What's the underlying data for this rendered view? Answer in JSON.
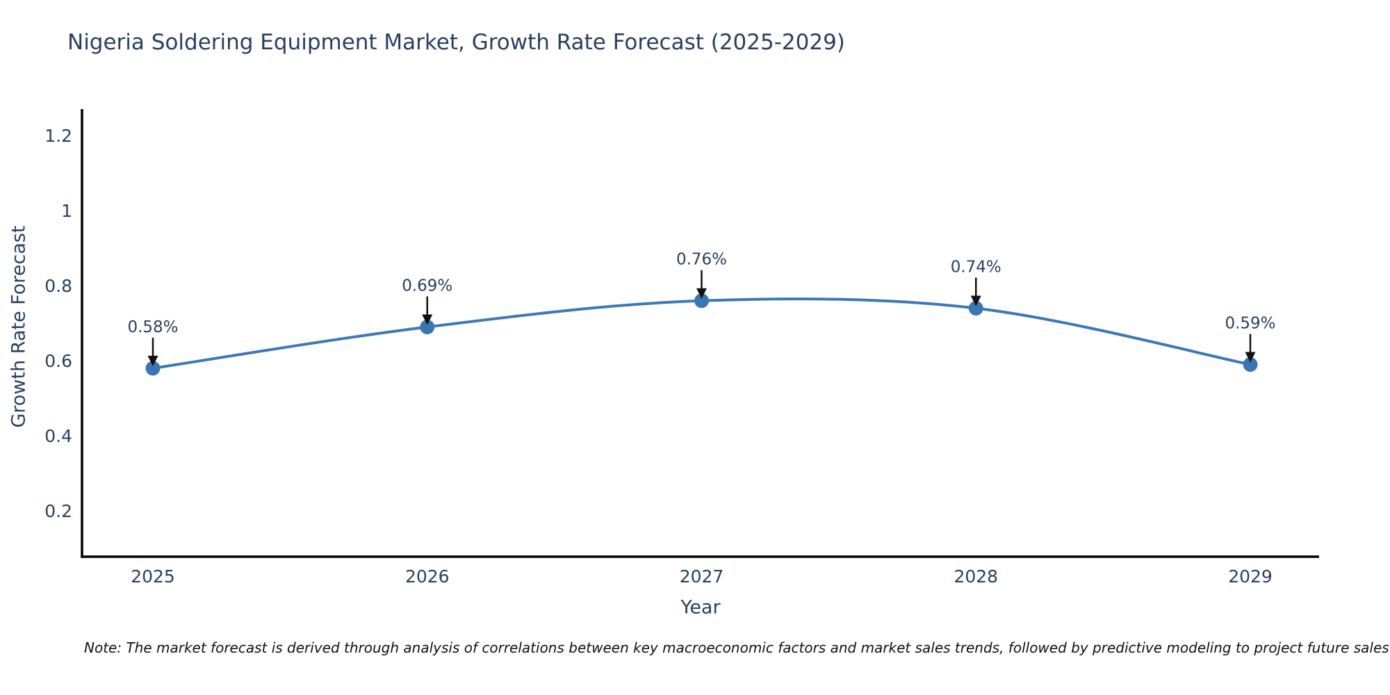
{
  "title": "Nigeria Soldering Equipment Market, Growth Rate Forecast (2025-2029)",
  "note": "Note: The market forecast is derived through analysis of correlations between key macroeconomic factors and market sales trends, followed by predictive modeling to project future sales",
  "chart_data": {
    "type": "line",
    "line_shape": "spline",
    "categories": [
      "2025",
      "2026",
      "2027",
      "2028",
      "2029"
    ],
    "series": [
      {
        "name": "Growth Rate Forecast",
        "values": [
          0.58,
          0.69,
          0.76,
          0.74,
          0.59
        ]
      }
    ],
    "point_labels": [
      "0.58%",
      "0.69%",
      "0.76%",
      "0.74%",
      "0.59%"
    ],
    "title": "Nigeria Soldering Equipment Market, Growth Rate Forecast (2025-2029)",
    "xlabel": "Year",
    "ylabel": "Growth Rate Forecast",
    "yticks": [
      0.2,
      0.4,
      0.6,
      0.8,
      1,
      1.2
    ],
    "ytick_labels": [
      "0.2",
      "0.4",
      "0.6",
      "0.8",
      "1",
      "1.2"
    ],
    "ylim": [
      0.078,
      1.265
    ],
    "grid": false,
    "legend_position": "none",
    "colors": {
      "line": "#3d79b5",
      "marker": "#3a76b3",
      "axis": "#000000",
      "text": "#2a3f5f",
      "arrow": "#111111",
      "background": "#ffffff"
    }
  }
}
